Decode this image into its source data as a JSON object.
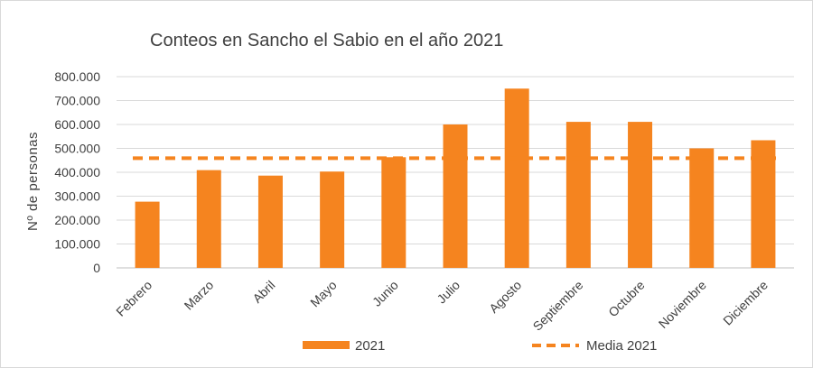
{
  "chart_data": {
    "type": "bar",
    "title": "Conteos en Sancho el Sabio en el año 2021",
    "ylabel": "Nº de personas",
    "xlabel": "",
    "categories": [
      "Febrero",
      "Marzo",
      "Abril",
      "Mayo",
      "Junio",
      "Julio",
      "Agosto",
      "Septiembre",
      "Octubre",
      "Noviembre",
      "Diciembre"
    ],
    "series": [
      {
        "name": "2021",
        "type": "bar",
        "color": "#f5841f",
        "values": [
          277000,
          409000,
          386000,
          403000,
          463000,
          600000,
          750000,
          611000,
          611000,
          500000,
          534000
        ]
      },
      {
        "name": "Media 2021",
        "type": "line",
        "style": "dashed",
        "color": "#f5841f",
        "value": 459000
      }
    ],
    "ylim": [
      0,
      800000
    ],
    "yticks": [
      0,
      100000,
      200000,
      300000,
      400000,
      500000,
      600000,
      700000,
      800000
    ],
    "ytick_labels": [
      "0",
      "100.000",
      "200.000",
      "300.000",
      "400.000",
      "500.000",
      "600.000",
      "700.000",
      "800.000"
    ],
    "grid": true,
    "legend_position": "bottom"
  }
}
